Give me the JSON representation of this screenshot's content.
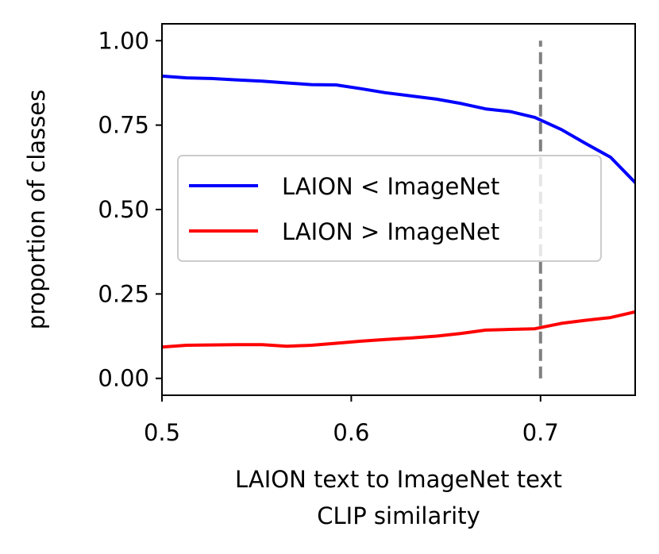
{
  "chart_data": {
    "type": "line",
    "title": "",
    "xlabel": [
      "LAION text to ImageNet text",
      "CLIP similarity"
    ],
    "ylabel": "proportion of classes",
    "xlim": [
      0.5,
      0.75
    ],
    "ylim": [
      -0.05,
      1.05
    ],
    "x_ticks": [
      0.5,
      0.6,
      0.7
    ],
    "x_tick_labels": [
      "0.5",
      "0.6",
      "0.7"
    ],
    "y_ticks": [
      0.0,
      0.25,
      0.5,
      0.75,
      1.0
    ],
    "y_tick_labels": [
      "0.00",
      "0.25",
      "0.50",
      "0.75",
      "1.00"
    ],
    "grid": false,
    "legend_position": "center-right",
    "series": [
      {
        "name": "LAION < ImageNet",
        "color": "#0000ff",
        "x": [
          0.5,
          0.513,
          0.526,
          0.539,
          0.553,
          0.566,
          0.579,
          0.592,
          0.605,
          0.618,
          0.632,
          0.645,
          0.658,
          0.671,
          0.684,
          0.697,
          0.711,
          0.724,
          0.737,
          0.75
        ],
        "y": [
          0.895,
          0.89,
          0.888,
          0.884,
          0.88,
          0.875,
          0.87,
          0.869,
          0.858,
          0.846,
          0.836,
          0.827,
          0.814,
          0.798,
          0.79,
          0.773,
          0.737,
          0.695,
          0.655,
          0.58
        ]
      },
      {
        "name": "LAION > ImageNet",
        "color": "#ff0000",
        "x": [
          0.5,
          0.513,
          0.526,
          0.539,
          0.553,
          0.566,
          0.579,
          0.592,
          0.605,
          0.618,
          0.632,
          0.645,
          0.658,
          0.671,
          0.684,
          0.697,
          0.711,
          0.724,
          0.737,
          0.75
        ],
        "y": [
          0.093,
          0.098,
          0.099,
          0.1,
          0.1,
          0.095,
          0.098,
          0.104,
          0.11,
          0.115,
          0.12,
          0.125,
          0.133,
          0.143,
          0.145,
          0.147,
          0.163,
          0.172,
          0.18,
          0.197
        ]
      }
    ],
    "reference_line": {
      "x": 0.7,
      "y_range": [
        0.0,
        1.0
      ],
      "color": "#808080",
      "style": "dashed"
    }
  }
}
